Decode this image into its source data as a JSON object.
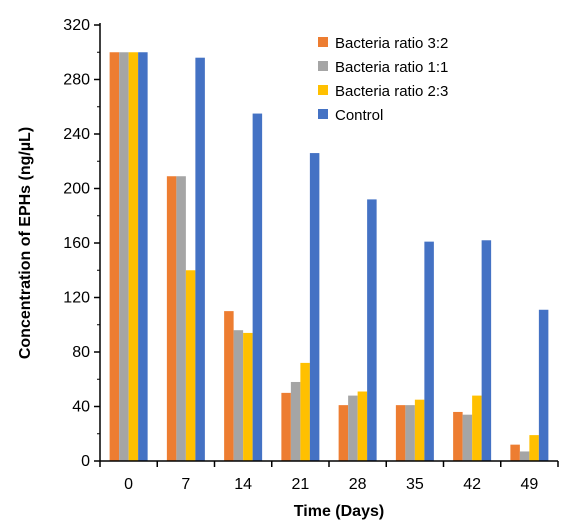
{
  "chart_data": {
    "type": "bar",
    "xlabel": "Time (Days)",
    "ylabel": "Concentration of EPHs  (ng/µL)",
    "ylim": [
      0,
      320
    ],
    "yticks": [
      0,
      40,
      80,
      120,
      160,
      200,
      240,
      280,
      320
    ],
    "categories": [
      "0",
      "7",
      "14",
      "21",
      "28",
      "35",
      "42",
      "49"
    ],
    "legend_position": "top-right",
    "grid": false,
    "series": [
      {
        "name": "Bacteria ratio 3:2",
        "color": "#ED7D31",
        "values": [
          300,
          209,
          110,
          50,
          41,
          41,
          36,
          12
        ]
      },
      {
        "name": "Bacteria ratio 1:1",
        "color": "#A5A5A5",
        "values": [
          300,
          209,
          96,
          58,
          48,
          41,
          34,
          7
        ]
      },
      {
        "name": "Bacteria ratio 2:3",
        "color": "#FFC000",
        "values": [
          300,
          140,
          94,
          72,
          51,
          45,
          48,
          19
        ]
      },
      {
        "name": "Control",
        "color": "#4472C4",
        "values": [
          300,
          296,
          255,
          226,
          192,
          161,
          162,
          111
        ]
      }
    ]
  }
}
